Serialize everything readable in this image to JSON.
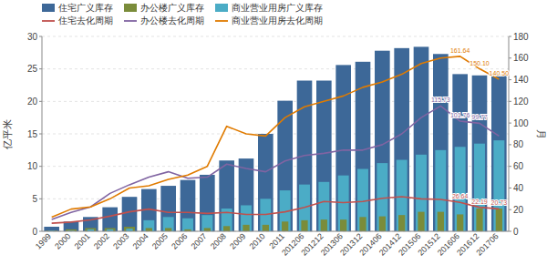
{
  "chart_data": {
    "type": "bar",
    "categories": [
      "1999",
      "2000",
      "2001",
      "2002",
      "2003",
      "2004",
      "2005",
      "2006",
      "2007",
      "2008",
      "2009",
      "2010",
      "2011",
      "201206",
      "201212",
      "201306",
      "201312",
      "201406",
      "201412",
      "201506",
      "201512",
      "201606",
      "201612",
      "201706"
    ],
    "series": [
      {
        "name": "住宅广义库存",
        "type": "bar",
        "color": "#3d6898",
        "values": [
          0.7,
          1.5,
          2.2,
          3.7,
          5.3,
          6.5,
          7.0,
          7.9,
          8.7,
          10.9,
          11.2,
          15.0,
          20.1,
          23.2,
          23.2,
          25.6,
          26.1,
          27.8,
          28.2,
          28.4,
          27.3,
          24.2,
          24.0,
          24.2
        ]
      },
      {
        "name": "办公楼广义库存",
        "type": "bar",
        "color": "#7a8c3a",
        "values": [
          0.1,
          0.3,
          0.5,
          0.5,
          0.7,
          0.5,
          0.5,
          0.3,
          0.5,
          0.8,
          1.0,
          1.0,
          1.5,
          1.7,
          1.8,
          1.8,
          2.2,
          2.3,
          2.5,
          3.0,
          3.0,
          2.6,
          3.5,
          3.5
        ]
      },
      {
        "name": "商业营业用房广义库存",
        "type": "bar",
        "color": "#4bacc6",
        "values": [
          0.1,
          0.1,
          0.3,
          0.3,
          0.4,
          1.7,
          2.2,
          2.0,
          2.5,
          3.5,
          4.0,
          5.0,
          6.3,
          7.2,
          7.6,
          8.6,
          9.6,
          10.5,
          11.0,
          11.8,
          12.5,
          13.0,
          13.5,
          14.0
        ]
      },
      {
        "name": "住宅去化周期",
        "type": "line",
        "axis": "y2",
        "color": "#c0504d",
        "values": [
          7.5,
          8.5,
          10.5,
          14.0,
          18.0,
          20.5,
          17.5,
          17.5,
          16.5,
          17.5,
          15.5,
          15.5,
          18.0,
          22.0,
          27.5,
          26.5,
          27.5,
          30.5,
          32.0,
          30.0,
          29.5,
          26.64,
          22.19,
          20.73
        ]
      },
      {
        "name": "办公楼去化周期",
        "type": "line",
        "axis": "y2",
        "color": "#8064a2",
        "values": [
          11.0,
          17.5,
          22.5,
          35.0,
          43.0,
          50.0,
          55.0,
          49.0,
          50.0,
          62.0,
          58.0,
          55.0,
          65.0,
          70.0,
          72.0,
          75.0,
          75.0,
          80.0,
          90.0,
          105.0,
          115.73,
          101.76,
          99.77,
          88.0
        ]
      },
      {
        "name": "商业营业用房去化周期",
        "type": "line",
        "axis": "y2",
        "color": "#e07b00",
        "values": [
          13.0,
          20.5,
          22.5,
          30.0,
          40.0,
          42.0,
          48.0,
          52.0,
          60.0,
          97.0,
          90.0,
          88.0,
          105.0,
          115.0,
          120.0,
          125.0,
          133.0,
          138.0,
          145.0,
          155.0,
          160.0,
          161.64,
          150.1,
          140.5
        ]
      }
    ],
    "ylabel": "亿平米",
    "y2label": "月",
    "ylim": [
      0,
      30.0
    ],
    "yticks": [
      0,
      5,
      10,
      15,
      20,
      25,
      30
    ],
    "y2lim": [
      0,
      180.0
    ],
    "y2ticks": [
      0,
      20,
      40,
      60,
      80,
      100,
      120,
      140,
      160,
      180
    ],
    "grid": true,
    "legend": "upper left",
    "annotations": [
      {
        "text": "26.64",
        "x": "201606",
        "y": 26.64,
        "axis": "y2",
        "color": "#c0504d"
      },
      {
        "text": "22.19",
        "x": "201612",
        "y": 22.19,
        "axis": "y2",
        "color": "#c0504d"
      },
      {
        "text": "20.73",
        "x": "201706",
        "y": 20.73,
        "axis": "y2",
        "color": "#c0504d"
      },
      {
        "text": "115.73",
        "x": "201512",
        "y": 115.73,
        "axis": "y2",
        "color": "#8064a2"
      },
      {
        "text": "101.76",
        "x": "201606",
        "y": 101.76,
        "axis": "y2",
        "color": "#8064a2"
      },
      {
        "text": "99.77",
        "x": "201612",
        "y": 99.77,
        "axis": "y2",
        "color": "#8064a2"
      },
      {
        "text": "161.64",
        "x": "201606",
        "y": 161.64,
        "axis": "y2",
        "color": "#e07b00"
      },
      {
        "text": "150.10",
        "x": "201612",
        "y": 150.1,
        "axis": "y2",
        "color": "#e07b00"
      },
      {
        "text": "140.50",
        "x": "201706",
        "y": 140.5,
        "axis": "y2",
        "color": "#e07b00"
      }
    ]
  }
}
